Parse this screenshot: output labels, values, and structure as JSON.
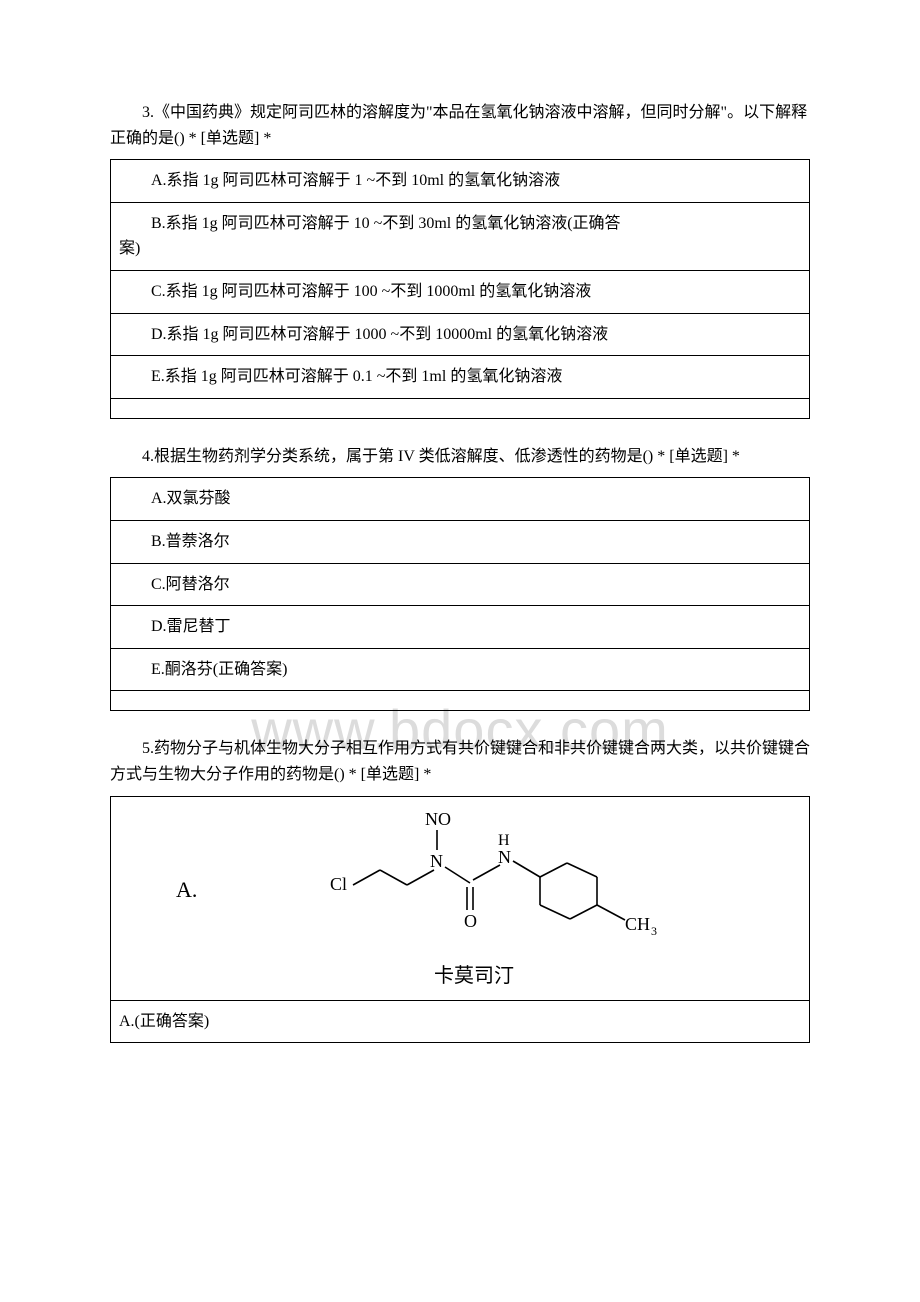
{
  "watermark": "www.bdocx.com",
  "q3": {
    "text": "3.《中国药典》规定阿司匹林的溶解度为\"本品在氢氧化钠溶液中溶解，但同时分解\"。以下解释正确的是() * [单选题] *",
    "options": {
      "a": "A.系指 1g 阿司匹林可溶解于 1 ~不到 10ml 的氢氧化钠溶液",
      "b": "B.系指 1g 阿司匹林可溶解于 10 ~不到 30ml 的氢氧化钠溶液(正确答案)",
      "c": "C.系指 1g 阿司匹林可溶解于 100 ~不到 1000ml 的氢氧化钠溶液",
      "d": "D.系指 1g 阿司匹林可溶解于 1000 ~不到 10000ml 的氢氧化钠溶液",
      "e": "E.系指 1g 阿司匹林可溶解于 0.1 ~不到 1ml 的氢氧化钠溶液"
    }
  },
  "q4": {
    "text": "4.根据生物药剂学分类系统，属于第 IV 类低溶解度、低渗透性的药物是() * [单选题] *",
    "options": {
      "a": "A.双氯芬酸",
      "b": "B.普萘洛尔",
      "c": "C.阿替洛尔",
      "d": "D.雷尼替丁",
      "e": "E.酮洛芬(正确答案)"
    }
  },
  "q5": {
    "text": "5.药物分子与机体生物大分子相互作用方式有共价键键合和非共价键键合两大类，以共价键键合方式与生物大分子作用的药物是() * [单选题] *",
    "chemLabel": "A.",
    "chemName": "卡莫司汀",
    "optionA": "A.(正确答案)",
    "chemStructure": {
      "atoms": {
        "cl": "Cl",
        "no": "NO",
        "n1": "N",
        "n2_h": "H",
        "n2": "N",
        "o": "O",
        "ch3": "CH",
        "ch3_sub": "3"
      },
      "stroke_color": "#000000",
      "stroke_width": 1.6
    }
  }
}
